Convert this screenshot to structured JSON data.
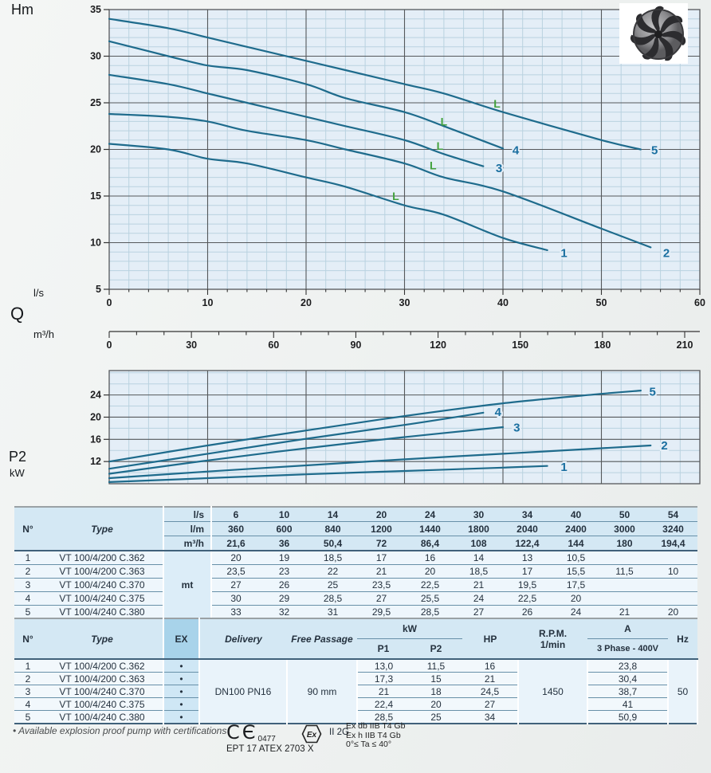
{
  "labels": {
    "q_axis": "Q"
  },
  "colors": {
    "curve": "#1e6b8c",
    "curve_label": "#1a6fa0",
    "grid_minor": "#b9d2e0",
    "grid_major": "#55585b",
    "plot_bg": "#e4eef7",
    "marker_green": "#43a23e",
    "tick_text": "#1c1c1e"
  },
  "chart_data": [
    {
      "type": "line",
      "name": "head-flow-curves",
      "ylabel": "Hm",
      "xlabel": "Q",
      "x_units": [
        "l/s",
        "m³/h"
      ],
      "xlim": [
        0,
        60
      ],
      "ylim": [
        5,
        35
      ],
      "x_ticks_ls": [
        0,
        10,
        20,
        30,
        40,
        50,
        60
      ],
      "x_ticks_m3h": [
        0,
        30,
        60,
        90,
        120,
        150,
        180,
        210
      ],
      "y_ticks": [
        5,
        10,
        15,
        20,
        25,
        30,
        35
      ],
      "grid": true,
      "series": [
        {
          "name": "1",
          "points": [
            [
              0,
              20.6
            ],
            [
              6,
              20
            ],
            [
              10,
              19
            ],
            [
              14,
              18.5
            ],
            [
              20,
              17
            ],
            [
              24,
              16
            ],
            [
              30,
              14
            ],
            [
              34,
              13
            ],
            [
              40,
              10.5
            ],
            [
              44.5,
              9.2
            ]
          ],
          "label": [
            46.2,
            8.9
          ]
        },
        {
          "name": "2",
          "points": [
            [
              0,
              23.8
            ],
            [
              6,
              23.5
            ],
            [
              10,
              23
            ],
            [
              14,
              22
            ],
            [
              20,
              21
            ],
            [
              24,
              20
            ],
            [
              30,
              18.5
            ],
            [
              34,
              17
            ],
            [
              40,
              15.5
            ],
            [
              50,
              11.5
            ],
            [
              55,
              9.5
            ]
          ],
          "label": [
            56.6,
            8.9
          ]
        },
        {
          "name": "3",
          "points": [
            [
              0,
              28
            ],
            [
              6,
              27
            ],
            [
              10,
              26
            ],
            [
              14,
              25
            ],
            [
              20,
              23.5
            ],
            [
              24,
              22.5
            ],
            [
              30,
              21
            ],
            [
              34,
              19.5
            ],
            [
              38,
              18.2
            ]
          ],
          "label": [
            39.6,
            18.0
          ]
        },
        {
          "name": "4",
          "points": [
            [
              0,
              31.6
            ],
            [
              6,
              30
            ],
            [
              10,
              29
            ],
            [
              14,
              28.5
            ],
            [
              20,
              27
            ],
            [
              24,
              25.5
            ],
            [
              30,
              24
            ],
            [
              34,
              22.5
            ],
            [
              40,
              20.1
            ]
          ],
          "label": [
            41.3,
            19.9
          ]
        },
        {
          "name": "5",
          "points": [
            [
              0,
              34
            ],
            [
              6,
              33
            ],
            [
              10,
              32
            ],
            [
              14,
              31
            ],
            [
              20,
              29.5
            ],
            [
              24,
              28.5
            ],
            [
              30,
              27
            ],
            [
              34,
              26
            ],
            [
              40,
              24
            ],
            [
              50,
              21
            ],
            [
              54,
              20
            ]
          ],
          "label": [
            55.4,
            19.9
          ]
        }
      ],
      "limit_markers": [
        [
          29.1,
          15.0
        ],
        [
          32.9,
          18.3
        ],
        [
          33.6,
          20.4
        ],
        [
          34.0,
          23.0
        ],
        [
          39.4,
          24.9
        ]
      ]
    },
    {
      "type": "line",
      "name": "power-curves",
      "ylabel": "P2",
      "y_unit": "kW",
      "xlim": [
        0,
        60
      ],
      "ylim": [
        8,
        28.4
      ],
      "y_ticks": [
        12,
        16,
        20,
        24
      ],
      "grid": true,
      "series": [
        {
          "name": "1",
          "points": [
            [
              0,
              8.3
            ],
            [
              10,
              9.0
            ],
            [
              20,
              9.7
            ],
            [
              30,
              10.3
            ],
            [
              40,
              10.9
            ],
            [
              44.5,
              11.2
            ]
          ],
          "label": [
            46.2,
            11.0
          ]
        },
        {
          "name": "2",
          "points": [
            [
              0,
              9.0
            ],
            [
              10,
              10.2
            ],
            [
              20,
              11.3
            ],
            [
              30,
              12.4
            ],
            [
              40,
              13.4
            ],
            [
              50,
              14.4
            ],
            [
              55,
              14.9
            ]
          ],
          "label": [
            56.4,
            14.9
          ]
        },
        {
          "name": "3",
          "points": [
            [
              0,
              9.8
            ],
            [
              10,
              12.2
            ],
            [
              20,
              14.4
            ],
            [
              30,
              16.4
            ],
            [
              40,
              18.2
            ]
          ],
          "label": [
            41.4,
            18.1
          ]
        },
        {
          "name": "4",
          "points": [
            [
              0,
              10.7
            ],
            [
              10,
              13.4
            ],
            [
              20,
              16.1
            ],
            [
              30,
              18.6
            ],
            [
              38,
              20.8
            ]
          ],
          "label": [
            39.5,
            20.9
          ]
        },
        {
          "name": "5",
          "points": [
            [
              0,
              12.0
            ],
            [
              10,
              14.9
            ],
            [
              20,
              17.6
            ],
            [
              30,
              20.2
            ],
            [
              40,
              22.5
            ],
            [
              50,
              24.2
            ],
            [
              54,
              24.8
            ]
          ],
          "label": [
            55.2,
            24.6
          ]
        }
      ]
    }
  ],
  "table1": {
    "headers": {
      "no": "N°",
      "type": "Type",
      "body_unit": "mt"
    },
    "unit_rows": [
      {
        "unit": "l/s",
        "values": [
          "6",
          "10",
          "14",
          "20",
          "24",
          "30",
          "34",
          "40",
          "50",
          "54"
        ]
      },
      {
        "unit": "l/m",
        "values": [
          "360",
          "600",
          "840",
          "1200",
          "1440",
          "1800",
          "2040",
          "2400",
          "3000",
          "3240"
        ]
      },
      {
        "unit": "m³/h",
        "values": [
          "21,6",
          "36",
          "50,4",
          "72",
          "86,4",
          "108",
          "122,4",
          "144",
          "180",
          "194,4"
        ]
      }
    ],
    "rows": [
      {
        "no": "1",
        "type": "VT 100/4/200 C.362",
        "values": [
          "20",
          "19",
          "18,5",
          "17",
          "16",
          "14",
          "13",
          "10,5",
          "",
          ""
        ]
      },
      {
        "no": "2",
        "type": "VT 100/4/200 C.363",
        "values": [
          "23,5",
          "23",
          "22",
          "21",
          "20",
          "18,5",
          "17",
          "15,5",
          "11,5",
          "10"
        ]
      },
      {
        "no": "3",
        "type": "VT 100/4/240 C.370",
        "values": [
          "27",
          "26",
          "25",
          "23,5",
          "22,5",
          "21",
          "19,5",
          "17,5",
          "",
          ""
        ]
      },
      {
        "no": "4",
        "type": "VT 100/4/240 C.375",
        "values": [
          "30",
          "29",
          "28,5",
          "27",
          "25,5",
          "24",
          "22,5",
          "20",
          "",
          ""
        ]
      },
      {
        "no": "5",
        "type": "VT 100/4/240 C.380",
        "values": [
          "33",
          "32",
          "31",
          "29,5",
          "28,5",
          "27",
          "26",
          "24",
          "21",
          "20"
        ]
      }
    ]
  },
  "table2": {
    "headers": {
      "no": "N°",
      "type": "Type",
      "ex": "EX",
      "delivery": "Delivery",
      "free_passage": "Free Passage",
      "kw": "kW",
      "p1": "P1",
      "p2": "P2",
      "hp": "HP",
      "rpm_line1": "R.P.M.",
      "rpm_line2": "1/min",
      "a": "A",
      "phase": "3 Phase - 400V",
      "hz": "Hz"
    },
    "shared": {
      "delivery": "DN100 PN16",
      "free_passage": "90 mm",
      "rpm": "1450",
      "hz": "50"
    },
    "ex_dot": "•",
    "rows": [
      {
        "no": "1",
        "type": "VT 100/4/200 C.362",
        "p1": "13,0",
        "p2": "11,5",
        "hp": "16",
        "a": "23,8"
      },
      {
        "no": "2",
        "type": "VT 100/4/200 C.363",
        "p1": "17,3",
        "p2": "15",
        "hp": "21",
        "a": "30,4"
      },
      {
        "no": "3",
        "type": "VT 100/4/240 C.370",
        "p1": "21",
        "p2": "18",
        "hp": "24,5",
        "a": "38,7"
      },
      {
        "no": "4",
        "type": "VT 100/4/240 C.375",
        "p1": "22,4",
        "p2": "20",
        "hp": "27",
        "a": "41"
      },
      {
        "no": "5",
        "type": "VT 100/4/240 C.380",
        "p1": "28,5",
        "p2": "25",
        "hp": "34",
        "a": "50,9"
      }
    ]
  },
  "footer": {
    "note": "• Available explosion proof pump with certifications",
    "ce_mark": "CЄ",
    "ce_number": "0477",
    "atex": "EPT 17 ATEX 2703 X",
    "ex_symbol": "Ex",
    "ex_group": "II 2G",
    "ex_lines": [
      "Ex db IIB T4 Gb",
      "Ex h IIB T4 Gb",
      "0°≤ Ta ≤ 40°"
    ]
  }
}
